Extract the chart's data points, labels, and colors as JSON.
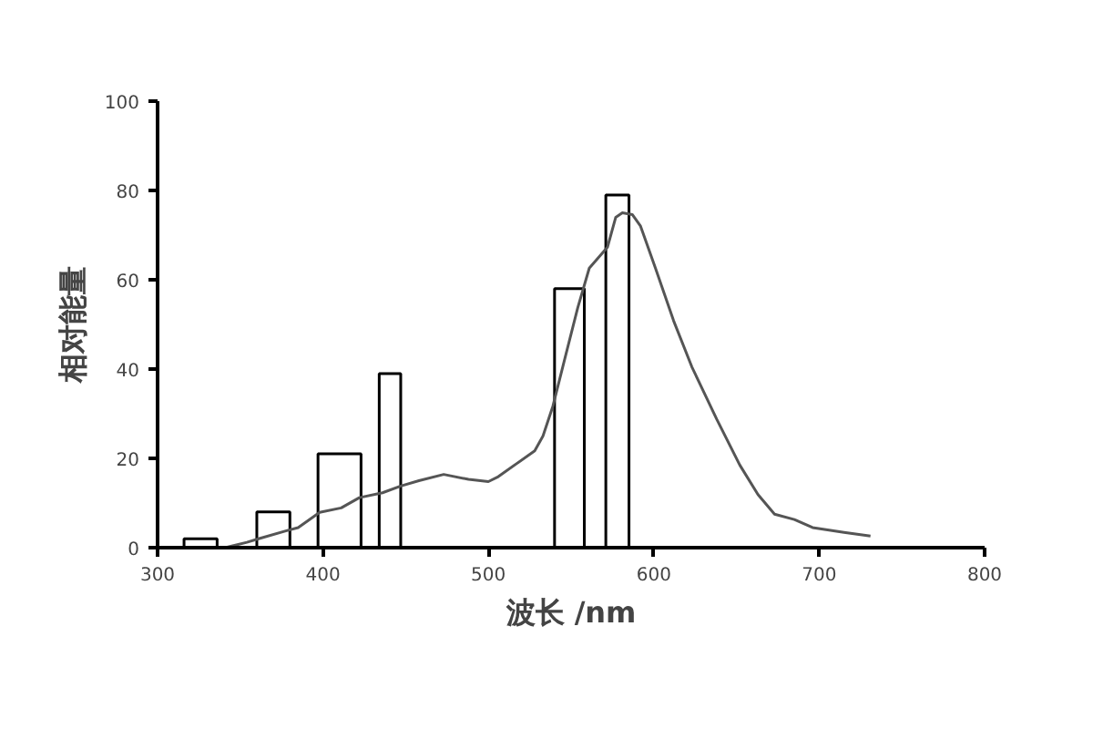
{
  "chart_data": {
    "type": "histogram",
    "xlabel": "波长 /nm",
    "ylabel": "相对能量",
    "xlim": [
      300,
      800
    ],
    "xticks": [
      300,
      400,
      500,
      600,
      700,
      800
    ],
    "ylim": [
      0,
      100
    ],
    "yticks": [
      0,
      20,
      40,
      60,
      80,
      100
    ],
    "grid": false,
    "series": [
      {
        "color": "#000000",
        "bins": [
          316,
          336,
          360,
          380,
          397,
          423,
          434,
          447,
          540,
          558,
          571,
          585
        ],
        "values": [
          2,
          null,
          8,
          null,
          21,
          null,
          39,
          null,
          58,
          null,
          79
        ]
      },
      {
        "type": "line",
        "color": "#555555",
        "x": [
          341,
          354,
          361,
          378,
          385,
          398,
          411,
          422,
          436,
          447,
          458,
          473,
          488,
          500,
          506,
          517,
          528,
          533,
          539,
          546,
          554,
          561,
          572,
          577,
          581,
          587,
          592,
          601,
          612,
          623,
          638,
          652,
          663,
          673,
          685,
          696,
          715,
          731
        ],
        "values": [
          0,
          1.2,
          2,
          3.8,
          4.5,
          7.9,
          8.9,
          11.2,
          12.3,
          13.8,
          15,
          16.4,
          15.3,
          14.8,
          15.9,
          18.8,
          21.7,
          25,
          31.7,
          42,
          53.7,
          62.6,
          67.3,
          74,
          75,
          74.6,
          72,
          62.6,
          50.8,
          40.5,
          28.8,
          18.5,
          11.9,
          7.5,
          6.3,
          4.5,
          3.4,
          2.6
        ]
      }
    ]
  }
}
